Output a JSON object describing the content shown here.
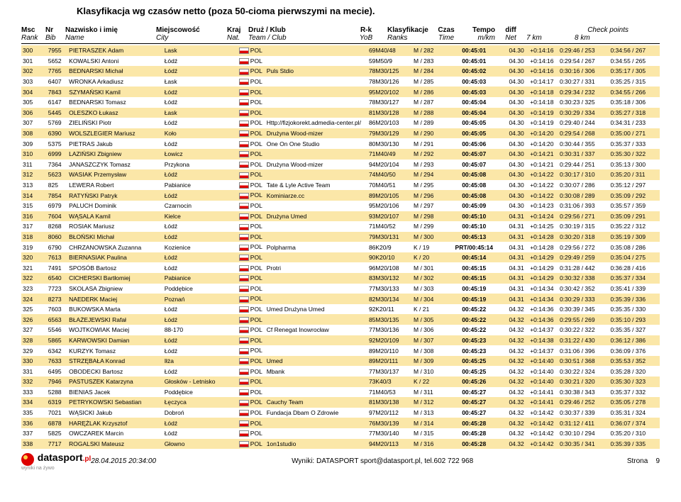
{
  "title": "Klasyfikacja wg czasów netto (poza 50-cioma pierwszymi na mecie).",
  "header": {
    "rank1": "Msc",
    "rank2": "Rank",
    "bib1": "Nr",
    "bib2": "Bib",
    "name1": "Nazwisko i imię",
    "name2": "Name",
    "city1": "Miejscowość",
    "city2": "City",
    "nat1": "Kraj",
    "nat2": "Nat.",
    "club1": "Druż / Klub",
    "club2": "Team / Club",
    "rk1": "R-k",
    "rk2": "YoB",
    "rnk1": "Klasyfikacje",
    "rnk2": "Ranks",
    "time1": "Czas",
    "time2": "Time",
    "tempo1": "Tempo",
    "tempo2": "m/km",
    "diff1": "diff",
    "diff2": "Net",
    "cp1": "7 km",
    "cp2": "8 km",
    "checkpoints": "Check points"
  },
  "rows": [
    {
      "r": "300",
      "b": "7955",
      "n": "PIETRASZEK Adam",
      "c": "Lask",
      "nat": "POL",
      "club": "",
      "rk": "69M40/48",
      "rnk": "M / 282",
      "t": "00:45:01",
      "tp": "04.30",
      "d": "+0:14:16",
      "p1": "0:29:46 / 253",
      "p2": "0:34:56 / 267"
    },
    {
      "r": "301",
      "b": "5652",
      "n": "KOWALSKI Antoni",
      "c": "Łódź",
      "nat": "POL",
      "club": "",
      "rk": "59M50/9",
      "rnk": "M / 283",
      "t": "00:45:01",
      "tp": "04.30",
      "d": "+0:14:16",
      "p1": "0:29:54 / 267",
      "p2": "0:34:55 / 265"
    },
    {
      "r": "302",
      "b": "7765",
      "n": "BEDNARSKI Michał",
      "c": "Łódź",
      "nat": "POL",
      "club": "Puls Stdio",
      "rk": "78M30/125",
      "rnk": "M / 284",
      "t": "00:45:02",
      "tp": "04.30",
      "d": "+0:14:16",
      "p1": "0:30:16 / 306",
      "p2": "0:35:17 / 305"
    },
    {
      "r": "303",
      "b": "6407",
      "n": "WRONKA Arkadiusz",
      "c": "Łask",
      "nat": "POL",
      "club": "",
      "rk": "78M30/126",
      "rnk": "M / 285",
      "t": "00:45:03",
      "tp": "04.30",
      "d": "+0:14:17",
      "p1": "0:30:27 / 331",
      "p2": "0:35:25 / 315"
    },
    {
      "r": "304",
      "b": "7843",
      "n": "SZYMAŃSKI Kamil",
      "c": "Łódź",
      "nat": "POL",
      "club": "",
      "rk": "95M20/102",
      "rnk": "M / 286",
      "t": "00:45:03",
      "tp": "04.30",
      "d": "+0:14:18",
      "p1": "0:29:34 / 232",
      "p2": "0:34:55 / 266"
    },
    {
      "r": "305",
      "b": "6147",
      "n": "BEDNARSKI Tomasz",
      "c": "Łódź",
      "nat": "POL",
      "club": "",
      "rk": "78M30/127",
      "rnk": "M / 287",
      "t": "00:45:04",
      "tp": "04.30",
      "d": "+0:14:18",
      "p1": "0:30:23 / 325",
      "p2": "0:35:18 / 306"
    },
    {
      "r": "306",
      "b": "5445",
      "n": "OLESZKO Łukasz",
      "c": "Łask",
      "nat": "POL",
      "club": "",
      "rk": "81M30/128",
      "rnk": "M / 288",
      "t": "00:45:04",
      "tp": "04.30",
      "d": "+0:14:19",
      "p1": "0:30:29 / 334",
      "p2": "0:35:27 / 318"
    },
    {
      "r": "307",
      "b": "5769",
      "n": "ZIELIŃSKI Piotr",
      "c": "Łódź",
      "nat": "POL",
      "club": "Http://fizjokorekt.admedia-center.pl/",
      "rk": "86M20/103",
      "rnk": "M / 289",
      "t": "00:45:05",
      "tp": "04.30",
      "d": "+0:14:19",
      "p1": "0:29:40 / 244",
      "p2": "0:34:31 / 233"
    },
    {
      "r": "308",
      "b": "6390",
      "n": "WOLSZLEGIER Mariusz",
      "c": "Koło",
      "nat": "POL",
      "club": "Drużyna Wood-mizer",
      "rk": "79M30/129",
      "rnk": "M / 290",
      "t": "00:45:05",
      "tp": "04.30",
      "d": "+0:14:20",
      "p1": "0:29:54 / 268",
      "p2": "0:35:00 / 271"
    },
    {
      "r": "309",
      "b": "5375",
      "n": "PIETRAS Jakub",
      "c": "Łódź",
      "nat": "POL",
      "club": "One On One Studio",
      "rk": "80M30/130",
      "rnk": "M / 291",
      "t": "00:45:06",
      "tp": "04.30",
      "d": "+0:14:20",
      "p1": "0:30:44 / 355",
      "p2": "0:35:37 / 333"
    },
    {
      "r": "310",
      "b": "6999",
      "n": "LAZIŃSKI Zbigniew",
      "c": "Łowicz",
      "nat": "POL",
      "club": "",
      "rk": "71M40/49",
      "rnk": "M / 292",
      "t": "00:45:07",
      "tp": "04.30",
      "d": "+0:14:21",
      "p1": "0:30:31 / 337",
      "p2": "0:35:30 / 322"
    },
    {
      "r": "311",
      "b": "7364",
      "n": "JANASZCZYK Tomasz",
      "c": "Przykona",
      "nat": "POL",
      "club": "Drużyna Wood-mizer",
      "rk": "94M20/104",
      "rnk": "M / 293",
      "t": "00:45:07",
      "tp": "04.30",
      "d": "+0:14:21",
      "p1": "0:29:44 / 251",
      "p2": "0:35:13 / 300"
    },
    {
      "r": "312",
      "b": "5623",
      "n": "WASIAK Przemysław",
      "c": "Łódź",
      "nat": "POL",
      "club": "",
      "rk": "74M40/50",
      "rnk": "M / 294",
      "t": "00:45:08",
      "tp": "04.30",
      "d": "+0:14:22",
      "p1": "0:30:17 / 310",
      "p2": "0:35:20 / 311"
    },
    {
      "r": "313",
      "b": "825",
      "n": "LEWERA Robert",
      "c": "Pabianice",
      "nat": "POL",
      "club": "Tate & Lyle Active Team",
      "rk": "70M40/51",
      "rnk": "M / 295",
      "t": "00:45:08",
      "tp": "04.30",
      "d": "+0:14:22",
      "p1": "0:30:07 / 286",
      "p2": "0:35:12 / 297"
    },
    {
      "r": "314",
      "b": "7854",
      "n": "RATYŃSKI Patryk",
      "c": "Łódź",
      "nat": "POL",
      "club": "Kominiarze.cc",
      "rk": "89M20/105",
      "rnk": "M / 296",
      "t": "00:45:08",
      "tp": "04.30",
      "d": "+0:14:22",
      "p1": "0:30:08 / 289",
      "p2": "0:35:09 / 292"
    },
    {
      "r": "315",
      "b": "6979",
      "n": "PALUCH Dominik",
      "c": "Czarnocin",
      "nat": "POL",
      "club": "",
      "rk": "95M20/106",
      "rnk": "M / 297",
      "t": "00:45:09",
      "tp": "04.30",
      "d": "+0:14:23",
      "p1": "0:31:06 / 393",
      "p2": "0:35:57 / 359"
    },
    {
      "r": "316",
      "b": "7604",
      "n": "WĄSALA Kamil",
      "c": "Kielce",
      "nat": "POL",
      "club": "Drużyna Umed",
      "rk": "93M20/107",
      "rnk": "M / 298",
      "t": "00:45:10",
      "tp": "04.31",
      "d": "+0:14:24",
      "p1": "0:29:56 / 271",
      "p2": "0:35:09 / 291"
    },
    {
      "r": "317",
      "b": "8268",
      "n": "ROSIAK Mariusz",
      "c": "Łódź",
      "nat": "POL",
      "club": "",
      "rk": "71M40/52",
      "rnk": "M / 299",
      "t": "00:45:10",
      "tp": "04.31",
      "d": "+0:14:25",
      "p1": "0:30:19 / 315",
      "p2": "0:35:22 / 312"
    },
    {
      "r": "318",
      "b": "8060",
      "n": "BŁOŃSKI Michał",
      "c": "Łódź",
      "nat": "POL",
      "club": "",
      "rk": "79M30/131",
      "rnk": "M / 300",
      "t": "00:45:13",
      "tp": "04.31",
      "d": "+0:14:28",
      "p1": "0:30:20 / 318",
      "p2": "0:35:19 / 309"
    },
    {
      "r": "319",
      "b": "6790",
      "n": "CHRZANOWSKA Zuzanna",
      "c": "Kozienice",
      "nat": "POL",
      "club": "Polpharma",
      "rk": "86K20/9",
      "rnk": "K / 19",
      "t": "PRT/00:45:14",
      "tp": "04.31",
      "d": "+0:14:28",
      "p1": "0:29:56 / 272",
      "p2": "0:35:08 / 286"
    },
    {
      "r": "320",
      "b": "7613",
      "n": "BIERNASIAK Paulina",
      "c": "Łódź",
      "nat": "POL",
      "club": "",
      "rk": "90K20/10",
      "rnk": "K / 20",
      "t": "00:45:14",
      "tp": "04.31",
      "d": "+0:14:29",
      "p1": "0:29:49 / 259",
      "p2": "0:35:04 / 275"
    },
    {
      "r": "321",
      "b": "7491",
      "n": "SPOSÓB Bartosz",
      "c": "Łódź",
      "nat": "POL",
      "club": "Protri",
      "rk": "96M20/108",
      "rnk": "M / 301",
      "t": "00:45:15",
      "tp": "04.31",
      "d": "+0:14:29",
      "p1": "0:31:28 / 442",
      "p2": "0:36:28 / 416"
    },
    {
      "r": "322",
      "b": "6540",
      "n": "CICHERSKI Bartłomiej",
      "c": "Pabianice",
      "nat": "POL",
      "club": "",
      "rk": "83M30/132",
      "rnk": "M / 302",
      "t": "00:45:15",
      "tp": "04.31",
      "d": "+0:14:29",
      "p1": "0:30:32 / 338",
      "p2": "0:35:37 / 334"
    },
    {
      "r": "323",
      "b": "7723",
      "n": "SKOLASA Zbigniew",
      "c": "Poddębice",
      "nat": "POL",
      "club": "",
      "rk": "77M30/133",
      "rnk": "M / 303",
      "t": "00:45:19",
      "tp": "04.31",
      "d": "+0:14:34",
      "p1": "0:30:42 / 352",
      "p2": "0:35:41 / 339"
    },
    {
      "r": "324",
      "b": "8273",
      "n": "NAEDERK Maciej",
      "c": "Poznań",
      "nat": "POL",
      "club": "",
      "rk": "82M30/134",
      "rnk": "M / 304",
      "t": "00:45:19",
      "tp": "04.31",
      "d": "+0:14:34",
      "p1": "0:30:29 / 333",
      "p2": "0:35:39 / 336"
    },
    {
      "r": "325",
      "b": "7603",
      "n": "BUKOWSKA Marta",
      "c": "Łódź",
      "nat": "POL",
      "club": "Umed Drużyna Umed",
      "rk": "92K20/11",
      "rnk": "K / 21",
      "t": "00:45:22",
      "tp": "04.32",
      "d": "+0:14:36",
      "p1": "0:30:39 / 345",
      "p2": "0:35:35 / 330"
    },
    {
      "r": "326",
      "b": "6563",
      "n": "BŁAŻEJEWSKI Rafał",
      "c": "Łódź",
      "nat": "POL",
      "club": "",
      "rk": "85M30/135",
      "rnk": "M / 305",
      "t": "00:45:22",
      "tp": "04.32",
      "d": "+0:14:36",
      "p1": "0:29:55 / 269",
      "p2": "0:35:10 / 293"
    },
    {
      "r": "327",
      "b": "5546",
      "n": "WOJTKOWIAK Maciej",
      "c": "88-170",
      "nat": "POL",
      "club": "Cf Renegat Inowrocław",
      "rk": "77M30/136",
      "rnk": "M / 306",
      "t": "00:45:22",
      "tp": "04.32",
      "d": "+0:14:37",
      "p1": "0:30:22 / 322",
      "p2": "0:35:35 / 327"
    },
    {
      "r": "328",
      "b": "5865",
      "n": "KARWOWSKI Damian",
      "c": "Łódź",
      "nat": "POL",
      "club": "",
      "rk": "92M20/109",
      "rnk": "M / 307",
      "t": "00:45:23",
      "tp": "04.32",
      "d": "+0:14:38",
      "p1": "0:31:22 / 430",
      "p2": "0:36:12 / 386"
    },
    {
      "r": "329",
      "b": "6342",
      "n": "KURZYK Tomasz",
      "c": "Łódź",
      "nat": "POL",
      "club": "",
      "rk": "89M20/110",
      "rnk": "M / 308",
      "t": "00:45:23",
      "tp": "04.32",
      "d": "+0:14:37",
      "p1": "0:31:06 / 396",
      "p2": "0:36:09 / 376"
    },
    {
      "r": "330",
      "b": "7633",
      "n": "STRZĘBAŁA Konrad",
      "c": "Iłża",
      "nat": "POL",
      "club": "Umed",
      "rk": "89M20/111",
      "rnk": "M / 309",
      "t": "00:45:25",
      "tp": "04.32",
      "d": "+0:14:40",
      "p1": "0:30:51 / 368",
      "p2": "0:35:53 / 352"
    },
    {
      "r": "331",
      "b": "6495",
      "n": "OBODECKI Bartosz",
      "c": "Łódź",
      "nat": "POL",
      "club": "Mbank",
      "rk": "77M30/137",
      "rnk": "M / 310",
      "t": "00:45:25",
      "tp": "04.32",
      "d": "+0:14:40",
      "p1": "0:30:22 / 324",
      "p2": "0:35:28 / 320"
    },
    {
      "r": "332",
      "b": "7946",
      "n": "PASTUSZEK Katarzyna",
      "c": "Głosków - Letnisko",
      "nat": "POL",
      "club": "",
      "rk": "73K40/3",
      "rnk": "K / 22",
      "t": "00:45:26",
      "tp": "04.32",
      "d": "+0:14:40",
      "p1": "0:30:21 / 320",
      "p2": "0:35:30 / 323"
    },
    {
      "r": "333",
      "b": "5288",
      "n": "BIENIAS Jacek",
      "c": "Poddębice",
      "nat": "POL",
      "club": "",
      "rk": "71M40/53",
      "rnk": "M / 311",
      "t": "00:45:27",
      "tp": "04.32",
      "d": "+0:14:41",
      "p1": "0:30:38 / 343",
      "p2": "0:35:37 / 332"
    },
    {
      "r": "334",
      "b": "6319",
      "n": "PETRYKOWSKI Sebastian",
      "c": "Łęczyca",
      "nat": "POL",
      "club": "Cauchy Team",
      "rk": "81M30/138",
      "rnk": "M / 312",
      "t": "00:45:27",
      "tp": "04.32",
      "d": "+0:14:41",
      "p1": "0:29:46 / 252",
      "p2": "0:35:05 / 278"
    },
    {
      "r": "335",
      "b": "7021",
      "n": "WĄSICKI Jakub",
      "c": "Dobroń",
      "nat": "POL",
      "club": "Fundacja Dbam O Zdrowie",
      "rk": "97M20/112",
      "rnk": "M / 313",
      "t": "00:45:27",
      "tp": "04.32",
      "d": "+0:14:42",
      "p1": "0:30:37 / 339",
      "p2": "0:35:31 / 324"
    },
    {
      "r": "336",
      "b": "6878",
      "n": "HARĘŻLAK Krzysztof",
      "c": "Łódź",
      "nat": "POL",
      "club": "",
      "rk": "76M30/139",
      "rnk": "M / 314",
      "t": "00:45:28",
      "tp": "04.32",
      "d": "+0:14:42",
      "p1": "0:31:12 / 411",
      "p2": "0:36:07 / 374"
    },
    {
      "r": "337",
      "b": "5825",
      "n": "OWCZAREK Marcin",
      "c": "Łódź",
      "nat": "POL",
      "club": "",
      "rk": "77M30/140",
      "rnk": "M / 315",
      "t": "00:45:28",
      "tp": "04.32",
      "d": "+0:14:42",
      "p1": "0:30:10 / 294",
      "p2": "0:35:20 / 310"
    },
    {
      "r": "338",
      "b": "7717",
      "n": "ROGALSKI Mateusz",
      "c": "Głowno",
      "nat": "POL",
      "club": "1on1studio",
      "rk": "94M20/113",
      "rnk": "M / 316",
      "t": "00:45:28",
      "tp": "04.32",
      "d": "+0:14:42",
      "p1": "0:30:35 / 341",
      "p2": "0:35:39 / 335"
    }
  ],
  "footer": {
    "timestamp": "28.04.2015 20:34:00",
    "center": "Wyniki: DATASPORT sport@datasport.pl, tel.602 722 968",
    "page_label": "Strona",
    "page_num": "9",
    "logo1": "datasport",
    "logo2": ".pl",
    "logo3": "wyniki na żywo"
  }
}
